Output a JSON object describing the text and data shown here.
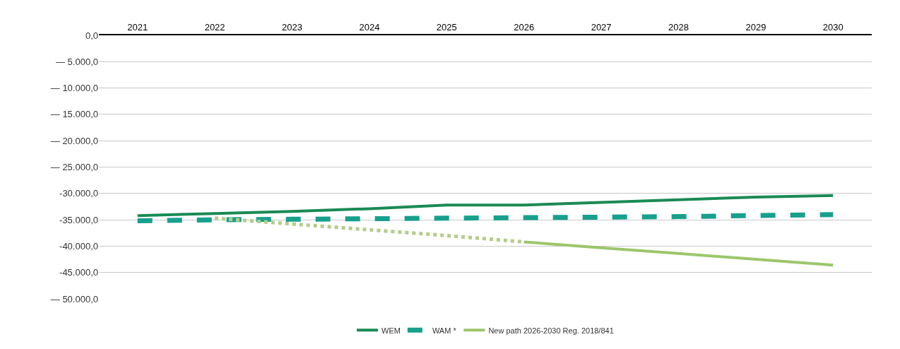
{
  "chart_data": {
    "type": "line",
    "categories": [
      "2021",
      "2022",
      "2023",
      "2024",
      "2025",
      "2026",
      "2027",
      "2028",
      "2029",
      "2030"
    ],
    "series": [
      {
        "name": "WEM",
        "color": "#1a8a55",
        "line_style": "solid",
        "values": [
          -34200,
          -33800,
          -33400,
          -32900,
          -32200,
          -32200,
          -31700,
          -31200,
          -30700,
          -30400
        ]
      },
      {
        "name": "WAM *",
        "color": "#17a08c",
        "line_style": "dashed",
        "values": [
          -35200,
          -35000,
          -34900,
          -34800,
          -34700,
          -34600,
          -34500,
          -34400,
          -34200,
          -34000
        ]
      },
      {
        "color": "#b5cc8a",
        "line_style": "dotted",
        "values": [
          null,
          -34700,
          -35800,
          -36900,
          -38000,
          -39200,
          null,
          null,
          null,
          null
        ]
      },
      {
        "name": "New path 2026-2030 Reg. 2018/841",
        "color": "#9dc66b",
        "line_style": "solid",
        "values": [
          null,
          null,
          null,
          null,
          null,
          -39200,
          -40300,
          -41400,
          -42500,
          -43600
        ]
      }
    ],
    "ylim": [
      -50000,
      0
    ],
    "yticks": [
      {
        "value": 0,
        "label": "0,0"
      },
      {
        "value": -5000,
        "label": "— 5.000,0"
      },
      {
        "value": -10000,
        "label": "— 10.000,0"
      },
      {
        "value": -15000,
        "label": "— 15.000,0"
      },
      {
        "value": -20000,
        "label": "— 20.000,0"
      },
      {
        "value": -25000,
        "label": "— 25.000,0"
      },
      {
        "value": -30000,
        "label": "-30.000,0"
      },
      {
        "value": -35000,
        "label": "-35.000,0"
      },
      {
        "value": -40000,
        "label": "-40.000,0"
      },
      {
        "value": -45000,
        "label": "-45.000,0"
      },
      {
        "value": -50000,
        "label": "— 50.000,0"
      }
    ],
    "grid": "y",
    "legend": "bottom",
    "marker": "none"
  }
}
